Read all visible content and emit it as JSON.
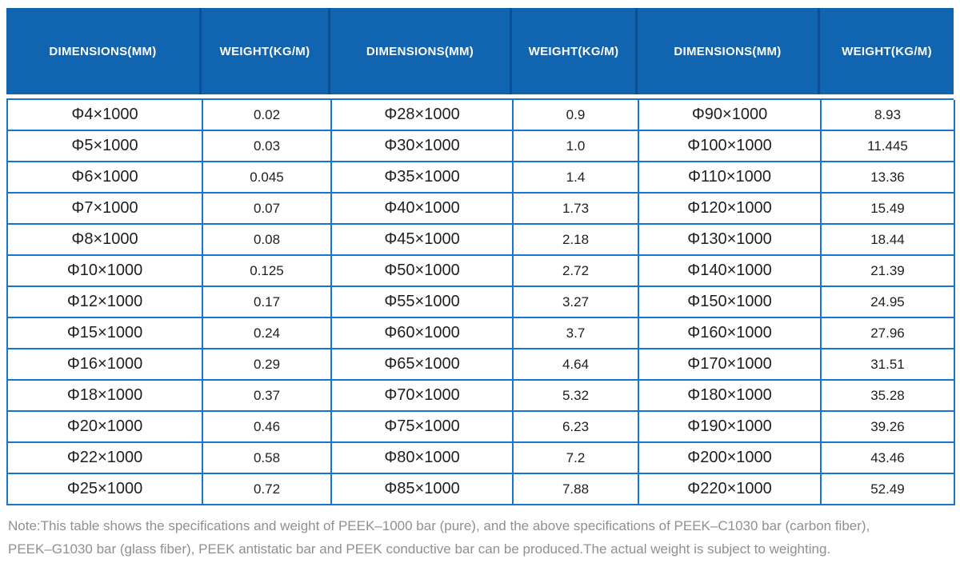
{
  "colors": {
    "page_bg": "#ffffff",
    "header_bg": "#1164af",
    "header_divider": "#0c4f94",
    "header_text": "#ffffff",
    "grid_border": "#1575d0",
    "cell_text": "#1f1f1f",
    "note_text": "#909090"
  },
  "table": {
    "header_labels": [
      "DIMENSIONS(MM)",
      "WEIGHT(KG/M)",
      "DIMENSIONS(MM)",
      "WEIGHT(KG/M)",
      "DIMENSIONS(MM)",
      "WEIGHT(KG/M)"
    ],
    "rows": [
      [
        "Φ4×1000",
        "0.02",
        "Φ28×1000",
        "0.9",
        "Φ90×1000",
        "8.93"
      ],
      [
        "Φ5×1000",
        "0.03",
        "Φ30×1000",
        "1.0",
        "Φ100×1000",
        "11.445"
      ],
      [
        "Φ6×1000",
        "0.045",
        "Φ35×1000",
        "1.4",
        "Φ110×1000",
        "13.36"
      ],
      [
        "Φ7×1000",
        "0.07",
        "Φ40×1000",
        "1.73",
        "Φ120×1000",
        "15.49"
      ],
      [
        "Φ8×1000",
        "0.08",
        "Φ45×1000",
        "2.18",
        "Φ130×1000",
        "18.44"
      ],
      [
        "Φ10×1000",
        "0.125",
        "Φ50×1000",
        "2.72",
        "Φ140×1000",
        "21.39"
      ],
      [
        "Φ12×1000",
        "0.17",
        "Φ55×1000",
        "3.27",
        "Φ150×1000",
        "24.95"
      ],
      [
        "Φ15×1000",
        "0.24",
        "Φ60×1000",
        "3.7",
        "Φ160×1000",
        "27.96"
      ],
      [
        "Φ16×1000",
        "0.29",
        "Φ65×1000",
        "4.64",
        "Φ170×1000",
        "31.51"
      ],
      [
        "Φ18×1000",
        "0.37",
        "Φ70×1000",
        "5.32",
        "Φ180×1000",
        "35.28"
      ],
      [
        "Φ20×1000",
        "0.46",
        "Φ75×1000",
        "6.23",
        "Φ190×1000",
        "39.26"
      ],
      [
        "Φ22×1000",
        "0.58",
        "Φ80×1000",
        "7.2",
        "Φ200×1000",
        "43.46"
      ],
      [
        "Φ25×1000",
        "0.72",
        "Φ85×1000",
        "7.88",
        "Φ220×1000",
        "52.49"
      ]
    ]
  },
  "note": {
    "line1": "Note:This table shows the specifications and weight of PEEK–1000 bar (pure), and the above specifications of PEEK–C1030 bar (carbon fiber),",
    "line2": "PEEK–G1030 bar (glass fiber), PEEK antistatic bar and PEEK conductive bar can be produced.The actual weight is subject to weighting."
  }
}
